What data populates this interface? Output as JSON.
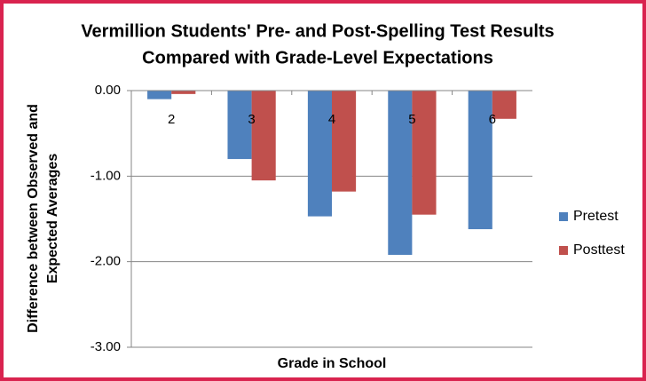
{
  "chart_data": {
    "type": "bar",
    "title": [
      "Vermillion Students' Pre- and Post-Spelling Test Results",
      "Compared with Grade-Level Expectations"
    ],
    "y_label": [
      "Difference between Observed and",
      "Expected Averages"
    ],
    "x_label": "Grade in School",
    "categories": [
      "2",
      "3",
      "4",
      "5",
      "6"
    ],
    "series": [
      {
        "name": "Pretest",
        "color": "#4f81bd",
        "values": [
          -0.1,
          -0.8,
          -1.47,
          -1.92,
          -1.62
        ]
      },
      {
        "name": "Posttest",
        "color": "#c0504d",
        "values": [
          -0.04,
          -1.05,
          -1.18,
          -1.45,
          -0.33
        ]
      }
    ],
    "ylim": [
      -3,
      0
    ],
    "yticks": [
      {
        "value": 0,
        "label": "0.00"
      },
      {
        "value": -1,
        "label": "-1.00"
      },
      {
        "value": -2,
        "label": "-2.00"
      },
      {
        "value": -3,
        "label": "-3.00"
      }
    ],
    "grid": true,
    "legend": "right"
  }
}
